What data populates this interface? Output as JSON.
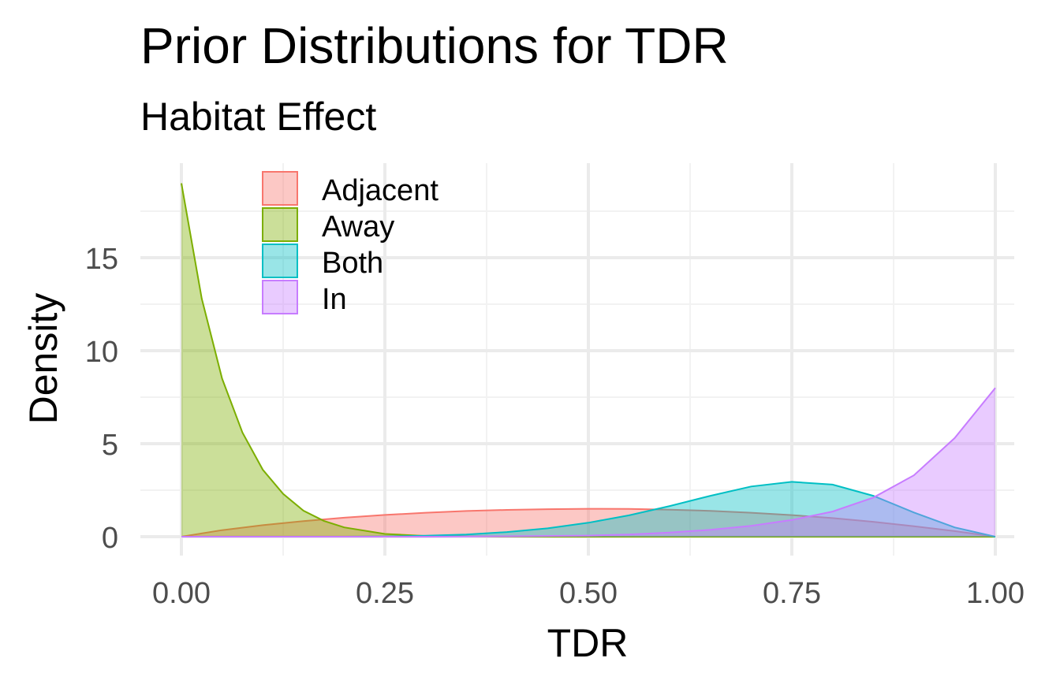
{
  "chart_data": {
    "type": "area",
    "title": "Prior Distributions for TDR",
    "subtitle": "Habitat Effect",
    "xlabel": "TDR",
    "ylabel": "Density",
    "xlim": [
      0,
      1
    ],
    "ylim": [
      0,
      19
    ],
    "x_ticks": [
      0,
      0.25,
      0.5,
      0.75,
      1
    ],
    "x_tick_labels": [
      "0.00",
      "0.25",
      "0.50",
      "0.75",
      "1.00"
    ],
    "y_ticks": [
      0,
      5,
      10,
      15
    ],
    "y_tick_labels": [
      "0",
      "5",
      "10",
      "15"
    ],
    "grid": true,
    "legend_position": "top-left",
    "series": [
      {
        "name": "Adjacent",
        "color": "#F8766D",
        "x": [
          0,
          0.05,
          0.1,
          0.15,
          0.2,
          0.25,
          0.3,
          0.35,
          0.4,
          0.45,
          0.5,
          0.55,
          0.6,
          0.65,
          0.7,
          0.75,
          0.8,
          0.85,
          0.9,
          0.95,
          1
        ],
        "values": [
          0,
          0.35,
          0.62,
          0.84,
          1.02,
          1.17,
          1.29,
          1.38,
          1.44,
          1.48,
          1.5,
          1.49,
          1.45,
          1.39,
          1.29,
          1.16,
          1.0,
          0.8,
          0.56,
          0.3,
          0
        ]
      },
      {
        "name": "Away",
        "color": "#7CAE00",
        "x": [
          0,
          0.025,
          0.05,
          0.075,
          0.1,
          0.125,
          0.15,
          0.175,
          0.2,
          0.25,
          0.3,
          0.4,
          0.5,
          0.6,
          0.7,
          0.8,
          0.9,
          1
        ],
        "values": [
          19.0,
          12.8,
          8.5,
          5.6,
          3.6,
          2.3,
          1.4,
          0.85,
          0.5,
          0.15,
          0.04,
          0.005,
          0,
          0,
          0,
          0,
          0,
          0
        ]
      },
      {
        "name": "Both",
        "color": "#00BFC4",
        "x": [
          0,
          0.2,
          0.25,
          0.3,
          0.35,
          0.4,
          0.45,
          0.5,
          0.55,
          0.6,
          0.65,
          0.7,
          0.75,
          0.8,
          0.85,
          0.9,
          0.95,
          1
        ],
        "values": [
          0,
          0,
          0.01,
          0.05,
          0.12,
          0.25,
          0.45,
          0.75,
          1.15,
          1.65,
          2.2,
          2.7,
          2.95,
          2.8,
          2.2,
          1.3,
          0.5,
          0
        ]
      },
      {
        "name": "In",
        "color": "#C77CFF",
        "x": [
          0,
          0.3,
          0.4,
          0.5,
          0.55,
          0.6,
          0.65,
          0.7,
          0.75,
          0.8,
          0.85,
          0.9,
          0.95,
          1
        ],
        "values": [
          0,
          0,
          0.02,
          0.06,
          0.12,
          0.22,
          0.37,
          0.58,
          0.9,
          1.35,
          2.1,
          3.3,
          5.3,
          8.0
        ]
      }
    ]
  }
}
